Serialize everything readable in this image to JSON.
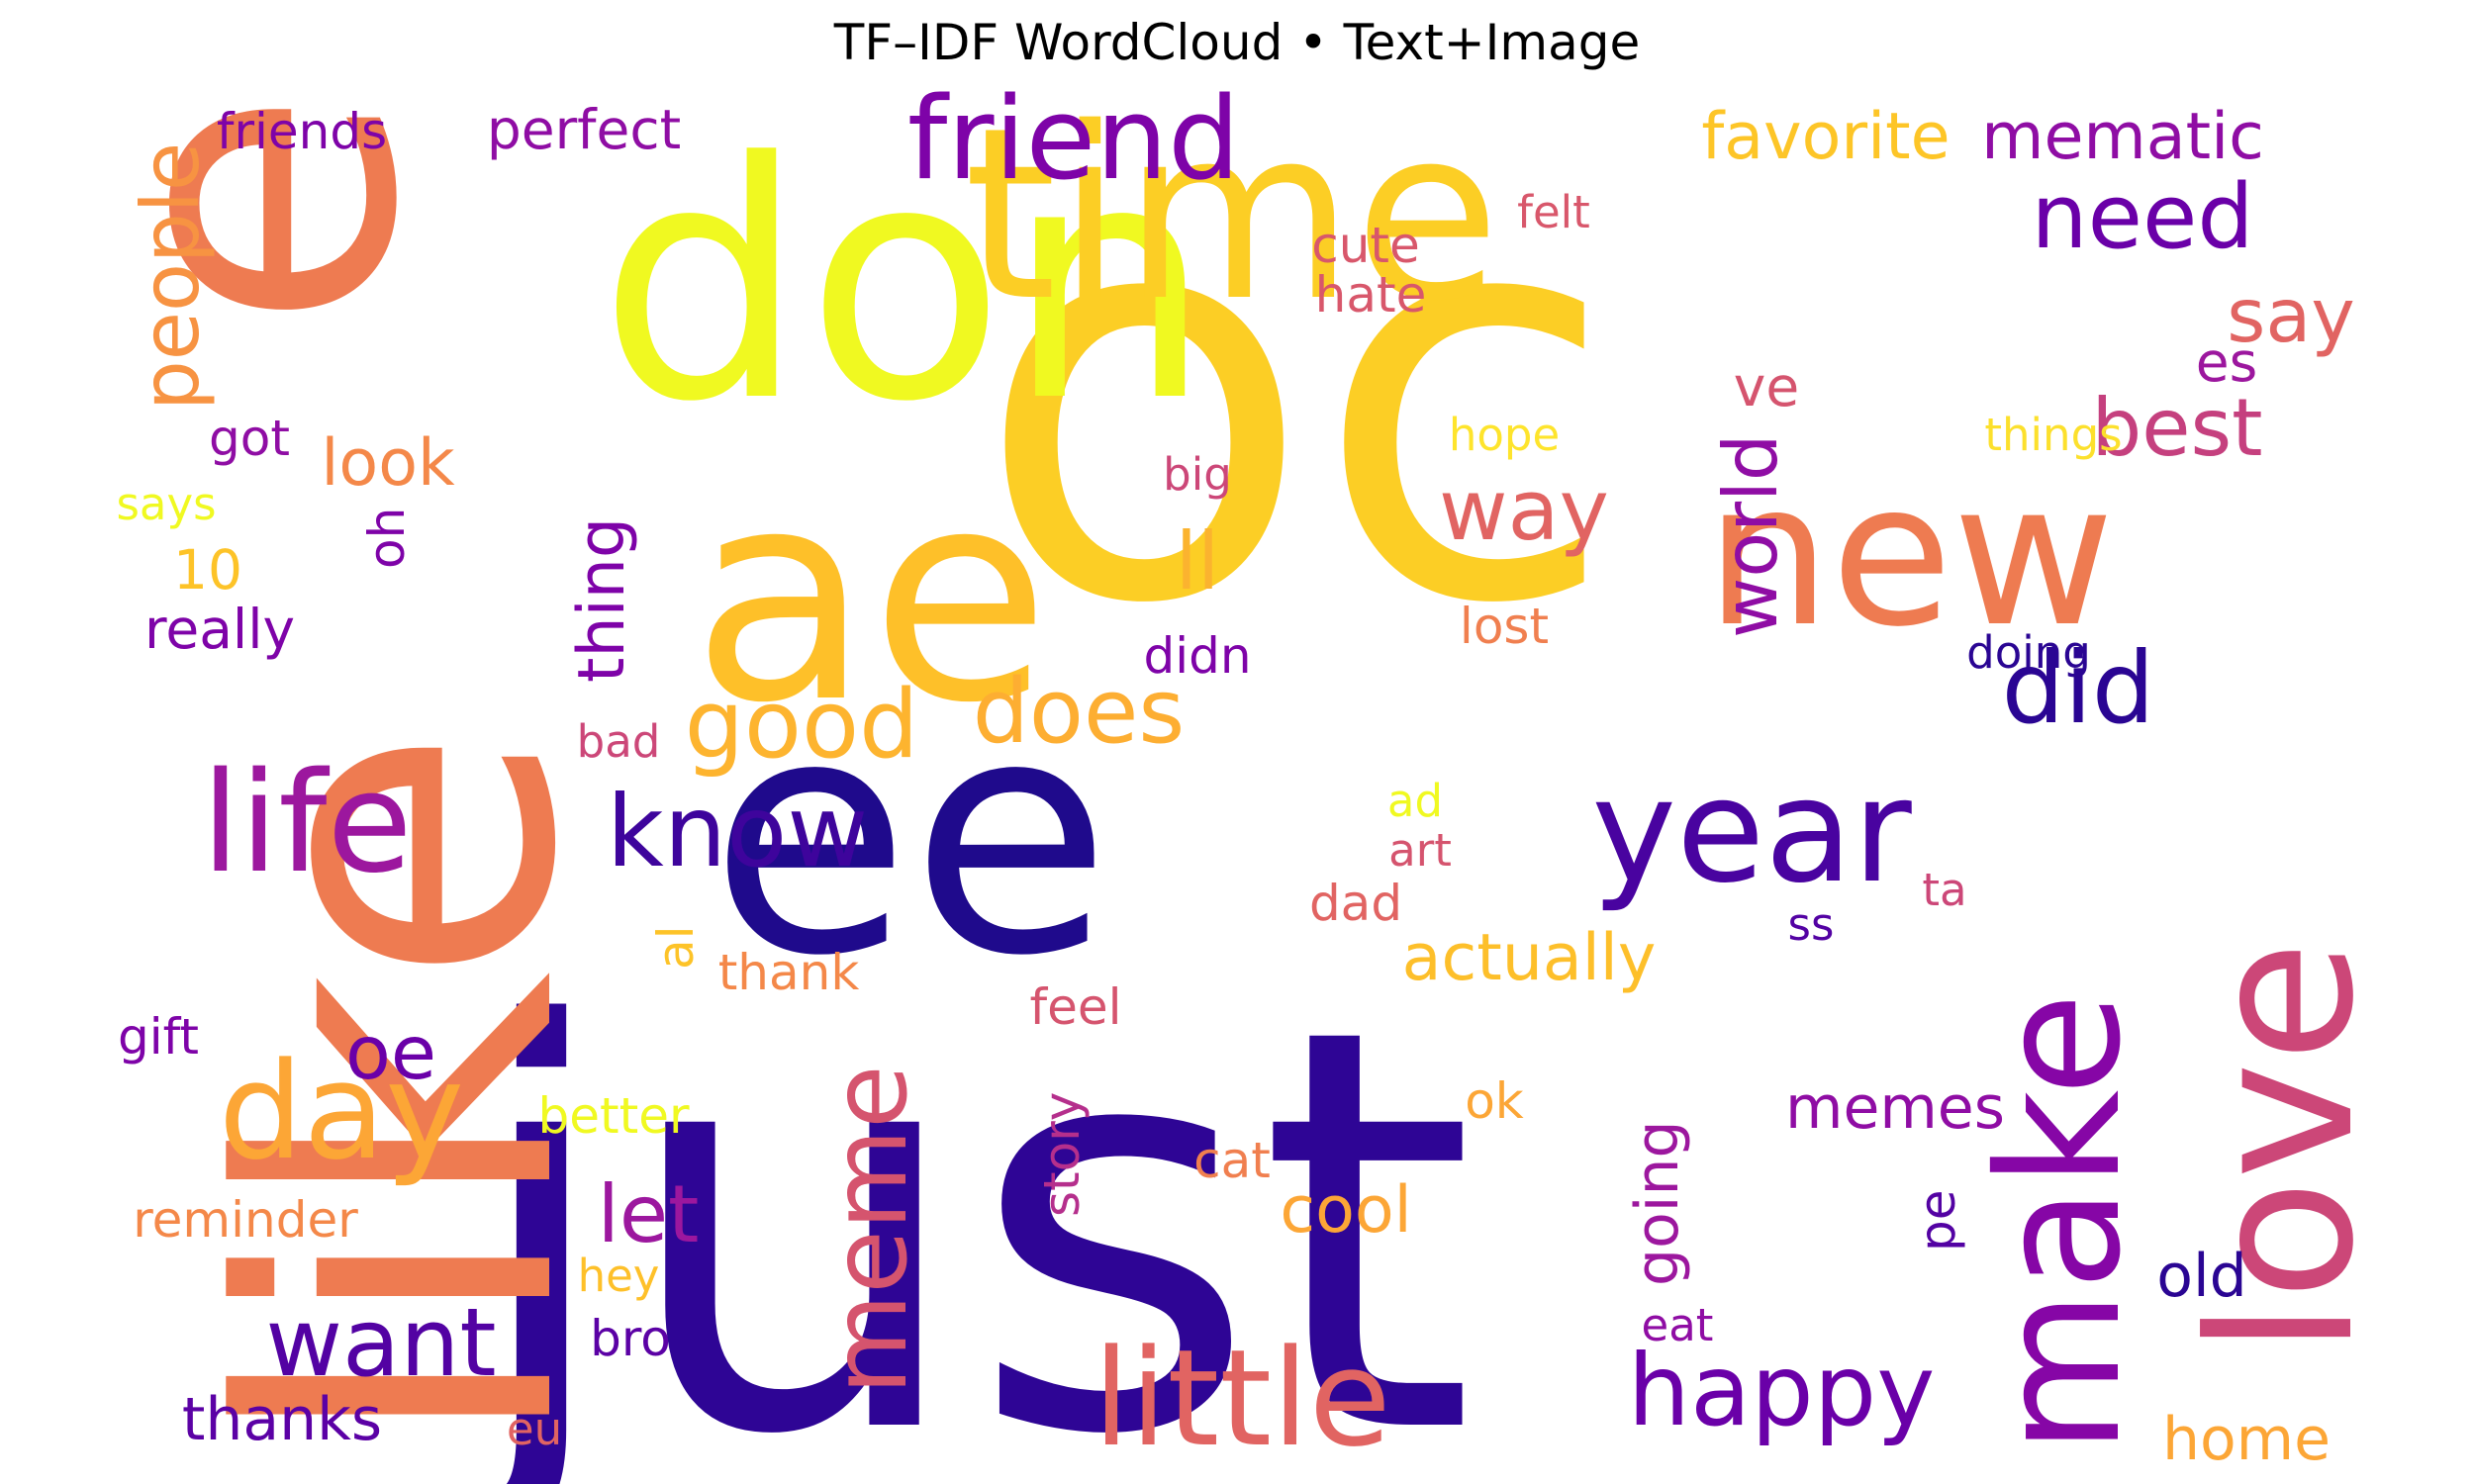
{
  "title": "TF–IDF WordCloud • Text+Image",
  "words": [
    {
      "text": "oc",
      "color": "#fcce25"
    },
    {
      "text": "just",
      "color": "#2e0595"
    },
    {
      "text": "like",
      "color": "#ee7b51"
    },
    {
      "text": "ee",
      "color": "#1f0a8c"
    },
    {
      "text": "don",
      "color": "#f0f921"
    },
    {
      "text": "ae",
      "color": "#fec029"
    },
    {
      "text": "e",
      "color": "#ee7b51"
    },
    {
      "text": "time",
      "color": "#fcce25"
    },
    {
      "text": "new",
      "color": "#ee7b51"
    },
    {
      "text": "love",
      "color": "#cc4778"
    },
    {
      "text": "make",
      "color": "#8606a6"
    },
    {
      "text": "little",
      "color": "#e16462"
    },
    {
      "text": "meme",
      "color": "#d5546e"
    },
    {
      "text": "life",
      "color": "#9c179e"
    },
    {
      "text": "year",
      "color": "#4903a0"
    },
    {
      "text": "day",
      "color": "#fca636"
    },
    {
      "text": "friend",
      "color": "#7e03a8"
    },
    {
      "text": "did",
      "color": "#2a0593"
    },
    {
      "text": "happy",
      "color": "#6a00a8"
    },
    {
      "text": "know",
      "color": "#3e049c"
    },
    {
      "text": "good",
      "color": "#fdb42f"
    },
    {
      "text": "does",
      "color": "#fdae32"
    },
    {
      "text": "want",
      "color": "#5302a3"
    },
    {
      "text": "need",
      "color": "#6a00a8"
    },
    {
      "text": "way",
      "color": "#e16462"
    },
    {
      "text": "best",
      "color": "#c5407e"
    },
    {
      "text": "say",
      "color": "#e16462"
    },
    {
      "text": "people",
      "color": "#f79342"
    },
    {
      "text": "world",
      "color": "#8f0da4"
    },
    {
      "text": "oe",
      "color": "#6a00a8"
    },
    {
      "text": "let",
      "color": "#9c179e"
    },
    {
      "text": "actually",
      "color": "#fdbf2a"
    },
    {
      "text": "ll",
      "color": "#fbb32f"
    },
    {
      "text": "look",
      "color": "#f48849"
    },
    {
      "text": "thanks",
      "color": "#5b01a5"
    },
    {
      "text": "memes",
      "color": "#8f0da4"
    },
    {
      "text": "cool",
      "color": "#fca636"
    },
    {
      "text": "home",
      "color": "#fca636"
    },
    {
      "text": "mematic",
      "color": "#8f0da4"
    },
    {
      "text": "favorite",
      "color": "#fdc527"
    },
    {
      "text": "going",
      "color": "#9c179e"
    },
    {
      "text": "thing",
      "color": "#7e03a8"
    },
    {
      "text": "old",
      "color": "#2a0593"
    },
    {
      "text": "friends",
      "color": "#7e03a8"
    },
    {
      "text": "perfect",
      "color": "#8f0da4"
    },
    {
      "text": "10",
      "color": "#fdc328"
    },
    {
      "text": "cute",
      "color": "#d8576b"
    },
    {
      "text": "hate",
      "color": "#d8576b"
    },
    {
      "text": "ve",
      "color": "#d5546e"
    },
    {
      "text": "es",
      "color": "#9c179e"
    },
    {
      "text": "felt",
      "color": "#d8576b"
    },
    {
      "text": "hope",
      "color": "#fee42c"
    },
    {
      "text": "things",
      "color": "#fce02c"
    },
    {
      "text": "big",
      "color": "#cc4778"
    },
    {
      "text": "lost",
      "color": "#f07f4f"
    },
    {
      "text": "doing",
      "color": "#2a0593"
    },
    {
      "text": "didn",
      "color": "#7e03a8"
    },
    {
      "text": "really",
      "color": "#7e03a8"
    },
    {
      "text": "says",
      "color": "#f0f921"
    },
    {
      "text": "got",
      "color": "#8f0da4"
    },
    {
      "text": "oh",
      "color": "#7e03a8"
    },
    {
      "text": "bad",
      "color": "#cc4778"
    },
    {
      "text": "ad",
      "color": "#f0f921"
    },
    {
      "text": "art",
      "color": "#d5546e"
    },
    {
      "text": "dad",
      "color": "#e16462"
    },
    {
      "text": "ta",
      "color": "#cc4778"
    },
    {
      "text": "ss",
      "color": "#5302a3"
    },
    {
      "text": "al",
      "color": "#fdc328"
    },
    {
      "text": "thank",
      "color": "#f48849"
    },
    {
      "text": "feel",
      "color": "#d5546e"
    },
    {
      "text": "gift",
      "color": "#7e03a8"
    },
    {
      "text": "story",
      "color": "#b52f8c"
    },
    {
      "text": "better",
      "color": "#f0f921"
    },
    {
      "text": "ok",
      "color": "#fca636"
    },
    {
      "text": "cat",
      "color": "#f07f4f"
    },
    {
      "text": "reminder",
      "color": "#f48849"
    },
    {
      "text": "pe",
      "color": "#5302a3"
    },
    {
      "text": "hey",
      "color": "#fec029"
    },
    {
      "text": "bro",
      "color": "#5b01a5"
    },
    {
      "text": "eat",
      "color": "#8f0da4"
    },
    {
      "text": "eu",
      "color": "#e16462"
    }
  ]
}
